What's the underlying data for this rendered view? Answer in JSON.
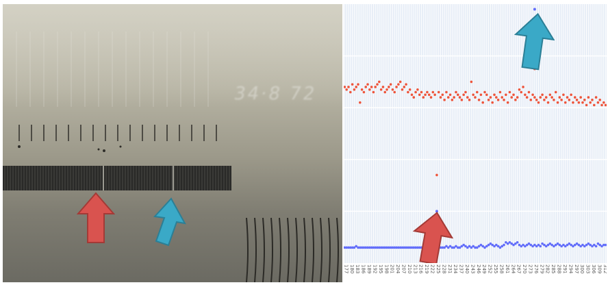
{
  "photo": {
    "stamp_text": "34·8 72"
  },
  "chart_data": {
    "type": "scatter",
    "title": "",
    "xlabel": "",
    "ylabel": "",
    "grid": true,
    "x_tick_labels": [
      "177",
      "180",
      "183",
      "186",
      "189",
      "192",
      "195",
      "198",
      "201",
      "204",
      "207",
      "210",
      "213",
      "216",
      "219",
      "222",
      "225",
      "228",
      "231",
      "234",
      "237",
      "240",
      "243",
      "246",
      "249",
      "252",
      "255",
      "258",
      "261",
      "264",
      "267",
      "270",
      "273",
      "276",
      "279",
      "282",
      "285",
      "288",
      "291",
      "294",
      "297",
      "300",
      "303",
      "306",
      "309",
      "312"
    ],
    "series": [
      {
        "color": "#ef553b",
        "x": [
          177,
          178,
          179,
          180,
          181,
          182,
          183,
          184,
          185,
          186,
          187,
          188,
          189,
          190,
          191,
          192,
          193,
          194,
          195,
          196,
          197,
          198,
          199,
          200,
          201,
          202,
          203,
          204,
          205,
          206,
          207,
          208,
          209,
          210,
          211,
          212,
          213,
          214,
          215,
          216,
          217,
          218,
          219,
          220,
          221,
          222,
          223,
          224,
          225,
          226,
          227,
          228,
          229,
          230,
          231,
          232,
          233,
          234,
          235,
          236,
          237,
          238,
          239,
          240,
          241,
          242,
          243,
          244,
          245,
          246,
          247,
          248,
          249,
          250,
          251,
          252,
          253,
          254,
          255,
          256,
          257,
          258,
          259,
          260,
          261,
          262,
          263,
          264,
          265,
          266,
          267,
          268,
          269,
          270,
          271,
          272,
          273,
          274,
          275,
          276,
          277,
          278,
          279,
          280,
          281,
          282,
          283,
          284,
          285,
          286,
          287,
          288,
          289,
          290,
          291,
          292,
          293,
          294,
          295,
          296,
          297,
          298,
          299,
          300,
          301,
          302,
          303,
          304,
          305,
          306,
          307,
          308,
          309,
          310,
          311,
          312,
          313
        ],
        "y": [
          0.68,
          0.67,
          0.68,
          0.66,
          0.69,
          0.67,
          0.68,
          0.69,
          0.62,
          0.67,
          0.66,
          0.68,
          0.69,
          0.67,
          0.68,
          0.66,
          0.68,
          0.69,
          0.7,
          0.67,
          0.68,
          0.66,
          0.67,
          0.68,
          0.69,
          0.67,
          0.66,
          0.68,
          0.69,
          0.7,
          0.67,
          0.68,
          0.69,
          0.66,
          0.67,
          0.65,
          0.64,
          0.66,
          0.67,
          0.65,
          0.66,
          0.64,
          0.65,
          0.66,
          0.65,
          0.64,
          0.66,
          0.65,
          0.34,
          0.66,
          0.64,
          0.65,
          0.63,
          0.66,
          0.64,
          0.65,
          0.63,
          0.64,
          0.66,
          0.65,
          0.64,
          0.63,
          0.65,
          0.66,
          0.64,
          0.63,
          0.7,
          0.65,
          0.64,
          0.66,
          0.63,
          0.65,
          0.62,
          0.66,
          0.65,
          0.63,
          0.64,
          0.62,
          0.65,
          0.64,
          0.63,
          0.66,
          0.64,
          0.63,
          0.65,
          0.62,
          0.66,
          0.64,
          0.65,
          0.63,
          0.64,
          0.67,
          0.66,
          0.68,
          0.65,
          0.64,
          0.66,
          0.63,
          0.65,
          0.64,
          0.63,
          0.62,
          0.64,
          0.65,
          0.63,
          0.64,
          0.62,
          0.65,
          0.64,
          0.63,
          0.66,
          0.62,
          0.64,
          0.63,
          0.65,
          0.62,
          0.64,
          0.63,
          0.65,
          0.62,
          0.64,
          0.63,
          0.62,
          0.64,
          0.62,
          0.63,
          0.61,
          0.64,
          0.62,
          0.63,
          0.61,
          0.64,
          0.62,
          0.63,
          0.61,
          0.62,
          0.61
        ],
        "outliers": [
          {
            "x": 276,
            "y": 0.75
          }
        ]
      },
      {
        "color": "#636efa",
        "x": [
          177,
          178,
          179,
          180,
          181,
          182,
          183,
          184,
          185,
          186,
          187,
          188,
          189,
          190,
          191,
          192,
          193,
          194,
          195,
          196,
          197,
          198,
          199,
          200,
          201,
          202,
          203,
          204,
          205,
          206,
          207,
          208,
          209,
          210,
          211,
          212,
          213,
          214,
          215,
          216,
          217,
          218,
          219,
          220,
          221,
          222,
          223,
          224,
          225,
          226,
          227,
          228,
          229,
          230,
          231,
          232,
          233,
          234,
          235,
          236,
          237,
          238,
          239,
          240,
          241,
          242,
          243,
          244,
          245,
          246,
          247,
          248,
          249,
          250,
          251,
          252,
          253,
          254,
          255,
          256,
          257,
          258,
          259,
          260,
          261,
          262,
          263,
          264,
          265,
          266,
          267,
          268,
          269,
          270,
          271,
          272,
          273,
          274,
          275,
          276,
          277,
          278,
          279,
          280,
          281,
          282,
          283,
          284,
          285,
          286,
          287,
          288,
          289,
          290,
          291,
          292,
          293,
          294,
          295,
          296,
          297,
          298,
          299,
          300,
          301,
          302,
          303,
          304,
          305,
          306,
          307,
          308,
          309,
          310,
          311,
          312,
          313
        ],
        "y": [
          0.06,
          0.06,
          0.06,
          0.06,
          0.06,
          0.06,
          0.065,
          0.06,
          0.06,
          0.06,
          0.06,
          0.06,
          0.06,
          0.06,
          0.06,
          0.06,
          0.06,
          0.06,
          0.06,
          0.06,
          0.06,
          0.06,
          0.06,
          0.06,
          0.06,
          0.06,
          0.06,
          0.06,
          0.06,
          0.06,
          0.06,
          0.06,
          0.06,
          0.06,
          0.06,
          0.06,
          0.06,
          0.06,
          0.06,
          0.06,
          0.06,
          0.06,
          0.06,
          0.06,
          0.065,
          0.07,
          0.06,
          0.06,
          0.06,
          0.065,
          0.06,
          0.06,
          0.06,
          0.065,
          0.06,
          0.065,
          0.06,
          0.06,
          0.065,
          0.06,
          0.06,
          0.065,
          0.07,
          0.065,
          0.06,
          0.065,
          0.06,
          0.065,
          0.06,
          0.06,
          0.065,
          0.07,
          0.065,
          0.06,
          0.065,
          0.07,
          0.075,
          0.07,
          0.065,
          0.07,
          0.065,
          0.06,
          0.065,
          0.07,
          0.08,
          0.075,
          0.08,
          0.075,
          0.07,
          0.075,
          0.08,
          0.07,
          0.065,
          0.07,
          0.065,
          0.07,
          0.075,
          0.07,
          0.065,
          0.07,
          0.065,
          0.07,
          0.065,
          0.075,
          0.07,
          0.065,
          0.07,
          0.075,
          0.07,
          0.065,
          0.07,
          0.075,
          0.07,
          0.065,
          0.07,
          0.065,
          0.07,
          0.075,
          0.07,
          0.065,
          0.07,
          0.075,
          0.07,
          0.065,
          0.07,
          0.065,
          0.07,
          0.075,
          0.07,
          0.065,
          0.07,
          0.065,
          0.075,
          0.07,
          0.065,
          0.07,
          0.07
        ],
        "outliers": [
          {
            "x": 225,
            "y": 0.2
          },
          {
            "x": 276,
            "y": 0.98
          }
        ]
      }
    ],
    "xlim": [
      176.5,
      313.5
    ],
    "ylim": [
      0,
      1
    ]
  },
  "arrows": {
    "red_color": "#d9534f",
    "blue_color": "#3aa9c7"
  }
}
